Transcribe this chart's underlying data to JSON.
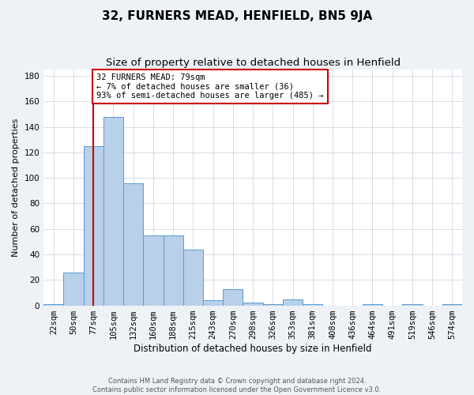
{
  "title": "32, FURNERS MEAD, HENFIELD, BN5 9JA",
  "subtitle": "Size of property relative to detached houses in Henfield",
  "xlabel": "Distribution of detached houses by size in Henfield",
  "ylabel": "Number of detached properties",
  "categories": [
    "22sqm",
    "50sqm",
    "77sqm",
    "105sqm",
    "132sqm",
    "160sqm",
    "188sqm",
    "215sqm",
    "243sqm",
    "270sqm",
    "298sqm",
    "326sqm",
    "353sqm",
    "381sqm",
    "408sqm",
    "436sqm",
    "464sqm",
    "491sqm",
    "519sqm",
    "546sqm",
    "574sqm"
  ],
  "values": [
    1,
    26,
    125,
    148,
    96,
    55,
    55,
    44,
    4,
    13,
    2,
    1,
    5,
    1,
    0,
    0,
    1,
    0,
    1,
    0,
    1
  ],
  "bar_color": "#b8d0e8",
  "bar_edge_color": "#5b9bd5",
  "vline_x_index": 2,
  "vline_color": "#cc0000",
  "annotation_text": "32 FURNERS MEAD: 79sqm\n← 7% of detached houses are smaller (36)\n93% of semi-detached houses are larger (485) →",
  "annotation_box_color": "#ffffff",
  "annotation_box_edge": "#cc0000",
  "ylim": [
    0,
    185
  ],
  "yticks": [
    0,
    20,
    40,
    60,
    80,
    100,
    120,
    140,
    160,
    180
  ],
  "title_fontsize": 11,
  "subtitle_fontsize": 9.5,
  "xlabel_fontsize": 8.5,
  "ylabel_fontsize": 8,
  "tick_fontsize": 7.5,
  "footer_text": "Contains HM Land Registry data © Crown copyright and database right 2024.\nContains public sector information licensed under the Open Government Licence v3.0.",
  "background_color": "#eef2f7",
  "plot_background": "#ffffff",
  "grid_color": "#c8d0dc"
}
